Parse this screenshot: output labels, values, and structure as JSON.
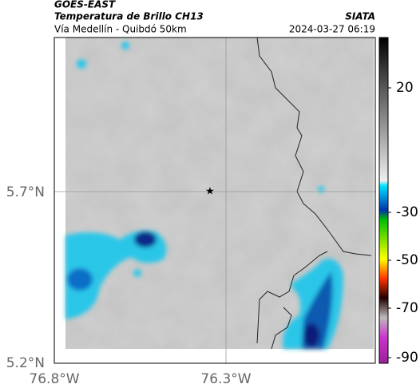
{
  "header": {
    "title": "GOES-EAST",
    "subtitle": "Temperatura de Brillo CH13",
    "source": "SIATA",
    "region": "Vía Medellín - Quibdó 50km",
    "datetime": "2024-03-27 06:19"
  },
  "axes": {
    "y_labels": [
      "5.7°N",
      "5.2°N"
    ],
    "x_labels": [
      "76.8°W",
      "76.3°W"
    ]
  },
  "colorbar": {
    "labels": [
      "20",
      "-30",
      "-50",
      "-70",
      "-90"
    ]
  }
}
